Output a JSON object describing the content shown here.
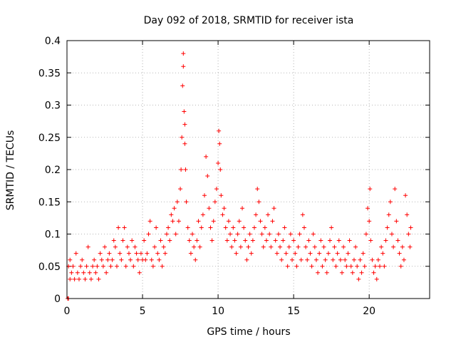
{
  "chart_data": {
    "type": "scatter",
    "title": "Day 092 of 2018, SRMTID for receiver ista",
    "xlabel": "GPS time / hours",
    "ylabel": "SRMTID / TECUs",
    "xlim": [
      0,
      24
    ],
    "ylim": [
      0,
      0.4
    ],
    "x_ticks": [
      0,
      5,
      10,
      15,
      20
    ],
    "x_tick_labels": [
      "0",
      "5",
      "10",
      "15",
      "20"
    ],
    "y_ticks": [
      0,
      0.05,
      0.1,
      0.15,
      0.2,
      0.25,
      0.3,
      0.35,
      0.4
    ],
    "y_tick_labels": [
      "0",
      "0.05",
      "0.1",
      "0.15",
      "0.2",
      "0.25",
      "0.3",
      "0.35",
      "0.4"
    ],
    "grid": true,
    "marker": "+",
    "color": "#ff0000",
    "series": [
      {
        "values": [
          [
            0.05,
            0.0
          ],
          [
            0.1,
            0.0
          ],
          [
            0.1,
            0.05
          ],
          [
            0.2,
            0.06
          ],
          [
            0.2,
            0.03
          ],
          [
            0.3,
            0.04
          ],
          [
            0.4,
            0.05
          ],
          [
            0.5,
            0.03
          ],
          [
            0.6,
            0.07
          ],
          [
            0.7,
            0.04
          ],
          [
            0.8,
            0.03
          ],
          [
            0.9,
            0.05
          ],
          [
            1.0,
            0.06
          ],
          [
            1.1,
            0.04
          ],
          [
            1.2,
            0.03
          ],
          [
            1.3,
            0.05
          ],
          [
            1.4,
            0.08
          ],
          [
            1.5,
            0.04
          ],
          [
            1.6,
            0.03
          ],
          [
            1.7,
            0.05
          ],
          [
            1.8,
            0.06
          ],
          [
            1.9,
            0.04
          ],
          [
            2.0,
            0.05
          ],
          [
            2.1,
            0.03
          ],
          [
            2.2,
            0.07
          ],
          [
            2.3,
            0.06
          ],
          [
            2.4,
            0.05
          ],
          [
            2.5,
            0.08
          ],
          [
            2.6,
            0.04
          ],
          [
            2.7,
            0.06
          ],
          [
            2.8,
            0.07
          ],
          [
            2.9,
            0.05
          ],
          [
            3.0,
            0.06
          ],
          [
            3.1,
            0.09
          ],
          [
            3.2,
            0.08
          ],
          [
            3.3,
            0.05
          ],
          [
            3.4,
            0.11
          ],
          [
            3.5,
            0.07
          ],
          [
            3.6,
            0.06
          ],
          [
            3.7,
            0.09
          ],
          [
            3.8,
            0.11
          ],
          [
            3.9,
            0.05
          ],
          [
            4.0,
            0.08
          ],
          [
            4.1,
            0.07
          ],
          [
            4.2,
            0.06
          ],
          [
            4.3,
            0.09
          ],
          [
            4.4,
            0.05
          ],
          [
            4.5,
            0.08
          ],
          [
            4.6,
            0.07
          ],
          [
            4.7,
            0.06
          ],
          [
            4.8,
            0.04
          ],
          [
            4.9,
            0.07
          ],
          [
            5.0,
            0.06
          ],
          [
            5.1,
            0.09
          ],
          [
            5.2,
            0.06
          ],
          [
            5.3,
            0.07
          ],
          [
            5.4,
            0.1
          ],
          [
            5.5,
            0.12
          ],
          [
            5.6,
            0.06
          ],
          [
            5.7,
            0.05
          ],
          [
            5.8,
            0.08
          ],
          [
            5.9,
            0.11
          ],
          [
            6.0,
            0.07
          ],
          [
            6.1,
            0.06
          ],
          [
            6.2,
            0.09
          ],
          [
            6.3,
            0.05
          ],
          [
            6.4,
            0.08
          ],
          [
            6.5,
            0.07
          ],
          [
            6.6,
            0.1
          ],
          [
            6.7,
            0.11
          ],
          [
            6.8,
            0.09
          ],
          [
            6.9,
            0.13
          ],
          [
            7.0,
            0.12
          ],
          [
            7.1,
            0.14
          ],
          [
            7.2,
            0.1
          ],
          [
            7.3,
            0.15
          ],
          [
            7.4,
            0.12
          ],
          [
            7.5,
            0.17
          ],
          [
            7.55,
            0.2
          ],
          [
            7.6,
            0.25
          ],
          [
            7.65,
            0.33
          ],
          [
            7.7,
            0.38
          ],
          [
            7.7,
            0.36
          ],
          [
            7.75,
            0.29
          ],
          [
            7.8,
            0.27
          ],
          [
            7.8,
            0.24
          ],
          [
            7.85,
            0.2
          ],
          [
            7.9,
            0.15
          ],
          [
            8.0,
            0.11
          ],
          [
            8.1,
            0.09
          ],
          [
            8.2,
            0.07
          ],
          [
            8.3,
            0.1
          ],
          [
            8.4,
            0.08
          ],
          [
            8.5,
            0.06
          ],
          [
            8.6,
            0.09
          ],
          [
            8.7,
            0.12
          ],
          [
            8.8,
            0.08
          ],
          [
            8.9,
            0.11
          ],
          [
            9.0,
            0.13
          ],
          [
            9.1,
            0.16
          ],
          [
            9.2,
            0.22
          ],
          [
            9.3,
            0.19
          ],
          [
            9.4,
            0.14
          ],
          [
            9.5,
            0.11
          ],
          [
            9.6,
            0.09
          ],
          [
            9.7,
            0.12
          ],
          [
            9.8,
            0.15
          ],
          [
            9.9,
            0.17
          ],
          [
            10.0,
            0.21
          ],
          [
            10.05,
            0.26
          ],
          [
            10.1,
            0.24
          ],
          [
            10.15,
            0.2
          ],
          [
            10.2,
            0.16
          ],
          [
            10.3,
            0.13
          ],
          [
            10.4,
            0.14
          ],
          [
            10.5,
            0.11
          ],
          [
            10.6,
            0.09
          ],
          [
            10.7,
            0.12
          ],
          [
            10.8,
            0.1
          ],
          [
            10.9,
            0.08
          ],
          [
            11.0,
            0.11
          ],
          [
            11.1,
            0.09
          ],
          [
            11.2,
            0.07
          ],
          [
            11.3,
            0.1
          ],
          [
            11.4,
            0.12
          ],
          [
            11.5,
            0.08
          ],
          [
            11.6,
            0.14
          ],
          [
            11.7,
            0.11
          ],
          [
            11.8,
            0.09
          ],
          [
            11.9,
            0.06
          ],
          [
            12.0,
            0.08
          ],
          [
            12.1,
            0.1
          ],
          [
            12.2,
            0.07
          ],
          [
            12.3,
            0.09
          ],
          [
            12.4,
            0.11
          ],
          [
            12.5,
            0.13
          ],
          [
            12.6,
            0.17
          ],
          [
            12.7,
            0.15
          ],
          [
            12.8,
            0.12
          ],
          [
            12.9,
            0.1
          ],
          [
            13.0,
            0.08
          ],
          [
            13.1,
            0.11
          ],
          [
            13.2,
            0.09
          ],
          [
            13.3,
            0.13
          ],
          [
            13.4,
            0.1
          ],
          [
            13.5,
            0.08
          ],
          [
            13.6,
            0.12
          ],
          [
            13.7,
            0.14
          ],
          [
            13.8,
            0.09
          ],
          [
            13.9,
            0.07
          ],
          [
            14.0,
            0.1
          ],
          [
            14.1,
            0.08
          ],
          [
            14.2,
            0.06
          ],
          [
            14.3,
            0.09
          ],
          [
            14.4,
            0.11
          ],
          [
            14.5,
            0.07
          ],
          [
            14.6,
            0.05
          ],
          [
            14.7,
            0.08
          ],
          [
            14.8,
            0.1
          ],
          [
            14.9,
            0.06
          ],
          [
            15.0,
            0.09
          ],
          [
            15.1,
            0.07
          ],
          [
            15.2,
            0.05
          ],
          [
            15.3,
            0.08
          ],
          [
            15.4,
            0.1
          ],
          [
            15.5,
            0.06
          ],
          [
            15.6,
            0.13
          ],
          [
            15.7,
            0.11
          ],
          [
            15.8,
            0.08
          ],
          [
            15.9,
            0.06
          ],
          [
            16.0,
            0.09
          ],
          [
            16.1,
            0.07
          ],
          [
            16.2,
            0.05
          ],
          [
            16.3,
            0.1
          ],
          [
            16.4,
            0.08
          ],
          [
            16.5,
            0.06
          ],
          [
            16.6,
            0.04
          ],
          [
            16.7,
            0.07
          ],
          [
            16.8,
            0.09
          ],
          [
            16.9,
            0.05
          ],
          [
            17.0,
            0.08
          ],
          [
            17.1,
            0.06
          ],
          [
            17.2,
            0.04
          ],
          [
            17.3,
            0.07
          ],
          [
            17.4,
            0.09
          ],
          [
            17.5,
            0.11
          ],
          [
            17.6,
            0.06
          ],
          [
            17.7,
            0.08
          ],
          [
            17.8,
            0.05
          ],
          [
            17.9,
            0.07
          ],
          [
            18.0,
            0.09
          ],
          [
            18.1,
            0.06
          ],
          [
            18.2,
            0.04
          ],
          [
            18.3,
            0.08
          ],
          [
            18.4,
            0.06
          ],
          [
            18.5,
            0.05
          ],
          [
            18.6,
            0.07
          ],
          [
            18.7,
            0.09
          ],
          [
            18.8,
            0.05
          ],
          [
            18.9,
            0.04
          ],
          [
            19.0,
            0.06
          ],
          [
            19.1,
            0.08
          ],
          [
            19.2,
            0.05
          ],
          [
            19.3,
            0.03
          ],
          [
            19.4,
            0.06
          ],
          [
            19.5,
            0.04
          ],
          [
            19.6,
            0.07
          ],
          [
            19.7,
            0.05
          ],
          [
            19.8,
            0.1
          ],
          [
            19.9,
            0.14
          ],
          [
            20.0,
            0.12
          ],
          [
            20.05,
            0.17
          ],
          [
            20.1,
            0.09
          ],
          [
            20.2,
            0.06
          ],
          [
            20.3,
            0.04
          ],
          [
            20.4,
            0.05
          ],
          [
            20.5,
            0.03
          ],
          [
            20.6,
            0.06
          ],
          [
            20.7,
            0.05
          ],
          [
            20.8,
            0.08
          ],
          [
            20.9,
            0.07
          ],
          [
            21.0,
            0.05
          ],
          [
            21.1,
            0.09
          ],
          [
            21.2,
            0.11
          ],
          [
            21.3,
            0.13
          ],
          [
            21.4,
            0.15
          ],
          [
            21.5,
            0.1
          ],
          [
            21.6,
            0.08
          ],
          [
            21.7,
            0.17
          ],
          [
            21.8,
            0.12
          ],
          [
            21.9,
            0.09
          ],
          [
            22.0,
            0.07
          ],
          [
            22.1,
            0.05
          ],
          [
            22.2,
            0.08
          ],
          [
            22.3,
            0.06
          ],
          [
            22.4,
            0.16
          ],
          [
            22.5,
            0.13
          ],
          [
            22.6,
            0.1
          ],
          [
            22.7,
            0.08
          ],
          [
            22.75,
            0.11
          ]
        ]
      }
    ]
  }
}
